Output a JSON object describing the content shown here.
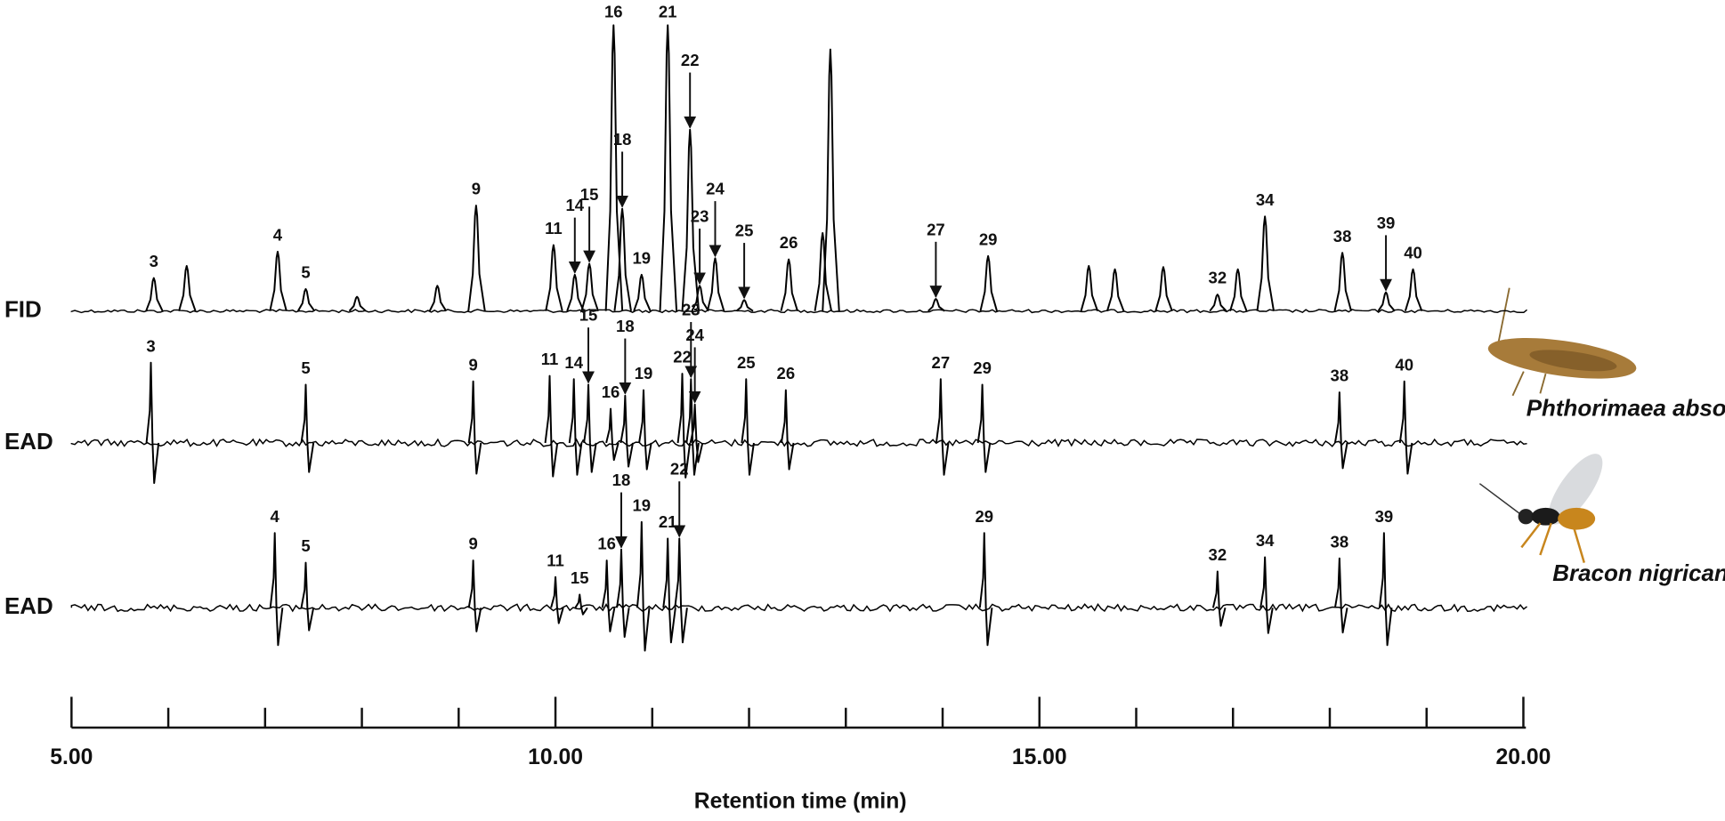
{
  "chart_data": {
    "type": "chromatogram",
    "xlabel": "Retention time (min)",
    "xlim": [
      5,
      20.06
    ],
    "xticks": [
      {
        "value": 5,
        "label": "5.00"
      },
      {
        "value": 10,
        "label": "10.00"
      },
      {
        "value": 15,
        "label": "15.00"
      },
      {
        "value": 20,
        "label": "20.00"
      }
    ],
    "x_minor_ticks": [
      6,
      7,
      8,
      9,
      11,
      12,
      13,
      14,
      16,
      17,
      18,
      19
    ],
    "traces": [
      {
        "name": "FID",
        "color": "#000000",
        "biphasic": false,
        "peaks": [
          {
            "label": "3",
            "x": 5.85,
            "height": 30,
            "arrow": false
          },
          {
            "label": null,
            "x": 6.19,
            "height": 41,
            "arrow": false
          },
          {
            "label": "4",
            "x": 7.13,
            "height": 54,
            "arrow": false
          },
          {
            "label": "5",
            "x": 7.42,
            "height": 20,
            "arrow": false
          },
          {
            "label": null,
            "x": 7.95,
            "height": 13,
            "arrow": false
          },
          {
            "label": null,
            "x": 8.78,
            "height": 23,
            "arrow": false
          },
          {
            "label": "9",
            "x": 9.18,
            "height": 96,
            "arrow": false
          },
          {
            "label": "11",
            "x": 9.98,
            "height": 60,
            "arrow": false
          },
          {
            "label": "14",
            "x": 10.2,
            "height": 33,
            "arrow": true
          },
          {
            "label": "15",
            "x": 10.35,
            "height": 43,
            "arrow": true
          },
          {
            "label": "16",
            "x": 10.6,
            "height": 260,
            "arrow": false
          },
          {
            "label": "18",
            "x": 10.69,
            "height": 93,
            "arrow": true
          },
          {
            "label": "19",
            "x": 10.89,
            "height": 33,
            "arrow": false
          },
          {
            "label": "21",
            "x": 11.16,
            "height": 260,
            "arrow": false
          },
          {
            "label": "22",
            "x": 11.39,
            "height": 165,
            "arrow": true
          },
          {
            "label": "23",
            "x": 11.49,
            "height": 23,
            "arrow": true
          },
          {
            "label": "24",
            "x": 11.65,
            "height": 48,
            "arrow": true
          },
          {
            "label": "25",
            "x": 11.95,
            "height": 10,
            "arrow": true
          },
          {
            "label": "26",
            "x": 12.41,
            "height": 47,
            "arrow": false
          },
          {
            "label": null,
            "x": 12.76,
            "height": 71,
            "arrow": false
          },
          {
            "label": null,
            "x": 12.84,
            "height": 238,
            "arrow": false
          },
          {
            "label": "27",
            "x": 13.93,
            "height": 11,
            "arrow": true
          },
          {
            "label": "29",
            "x": 14.47,
            "height": 50,
            "arrow": false
          },
          {
            "label": null,
            "x": 15.51,
            "height": 41,
            "arrow": false
          },
          {
            "label": null,
            "x": 15.78,
            "height": 38,
            "arrow": false
          },
          {
            "label": null,
            "x": 16.28,
            "height": 40,
            "arrow": false
          },
          {
            "label": "32",
            "x": 16.84,
            "height": 15,
            "arrow": false
          },
          {
            "label": null,
            "x": 17.05,
            "height": 38,
            "arrow": false
          },
          {
            "label": "34",
            "x": 17.33,
            "height": 86,
            "arrow": false
          },
          {
            "label": "38",
            "x": 18.13,
            "height": 53,
            "arrow": false
          },
          {
            "label": "39",
            "x": 18.58,
            "height": 17,
            "arrow": true
          },
          {
            "label": "40",
            "x": 18.86,
            "height": 38,
            "arrow": false
          }
        ]
      },
      {
        "name": "EAD",
        "species": "Phthorimaea absoluta",
        "color": "#000000",
        "biphasic": true,
        "peaks": [
          {
            "label": "3",
            "x": 5.82,
            "height": 73,
            "arrow": false
          },
          {
            "label": "5",
            "x": 7.42,
            "height": 53,
            "arrow": false
          },
          {
            "label": "9",
            "x": 9.15,
            "height": 56,
            "arrow": false
          },
          {
            "label": "11",
            "x": 9.94,
            "height": 61,
            "arrow": false
          },
          {
            "label": "14",
            "x": 10.19,
            "height": 58,
            "arrow": false
          },
          {
            "label": "15",
            "x": 10.34,
            "height": 53,
            "arrow": true
          },
          {
            "label": "16",
            "x": 10.57,
            "height": 31,
            "arrow": false
          },
          {
            "label": "18",
            "x": 10.72,
            "height": 43,
            "arrow": true
          },
          {
            "label": "19",
            "x": 10.91,
            "height": 48,
            "arrow": false
          },
          {
            "label": "22",
            "x": 11.31,
            "height": 63,
            "arrow": false
          },
          {
            "label": "23",
            "x": 11.4,
            "height": 58,
            "arrow": true
          },
          {
            "label": "24",
            "x": 11.44,
            "height": 35,
            "arrow": true
          },
          {
            "label": "25",
            "x": 11.97,
            "height": 58,
            "arrow": false
          },
          {
            "label": "26",
            "x": 12.38,
            "height": 48,
            "arrow": false
          },
          {
            "label": "27",
            "x": 13.98,
            "height": 58,
            "arrow": false
          },
          {
            "label": "29",
            "x": 14.41,
            "height": 53,
            "arrow": false
          },
          {
            "label": "38",
            "x": 18.1,
            "height": 46,
            "arrow": false
          },
          {
            "label": "40",
            "x": 18.77,
            "height": 56,
            "arrow": false
          }
        ]
      },
      {
        "name": "EAD",
        "species": "Bracon nigricans",
        "color": "#000000",
        "biphasic": true,
        "peaks": [
          {
            "label": "4",
            "x": 7.1,
            "height": 68,
            "arrow": false
          },
          {
            "label": "5",
            "x": 7.42,
            "height": 41,
            "arrow": false
          },
          {
            "label": "9",
            "x": 9.15,
            "height": 43,
            "arrow": false
          },
          {
            "label": "11",
            "x": 10.0,
            "height": 28,
            "arrow": false
          },
          {
            "label": "15",
            "x": 10.25,
            "height": 12,
            "arrow": false
          },
          {
            "label": "16",
            "x": 10.53,
            "height": 43,
            "arrow": false
          },
          {
            "label": "18",
            "x": 10.68,
            "height": 53,
            "arrow": true
          },
          {
            "label": "19",
            "x": 10.89,
            "height": 78,
            "arrow": false
          },
          {
            "label": "21",
            "x": 11.16,
            "height": 63,
            "arrow": false
          },
          {
            "label": "22",
            "x": 11.28,
            "height": 63,
            "arrow": true
          },
          {
            "label": "29",
            "x": 14.43,
            "height": 68,
            "arrow": false
          },
          {
            "label": "32",
            "x": 16.84,
            "height": 33,
            "arrow": false
          },
          {
            "label": "34",
            "x": 17.33,
            "height": 46,
            "arrow": false
          },
          {
            "label": "38",
            "x": 18.1,
            "height": 45,
            "arrow": false
          },
          {
            "label": "39",
            "x": 18.56,
            "height": 68,
            "arrow": false
          }
        ]
      }
    ]
  }
}
